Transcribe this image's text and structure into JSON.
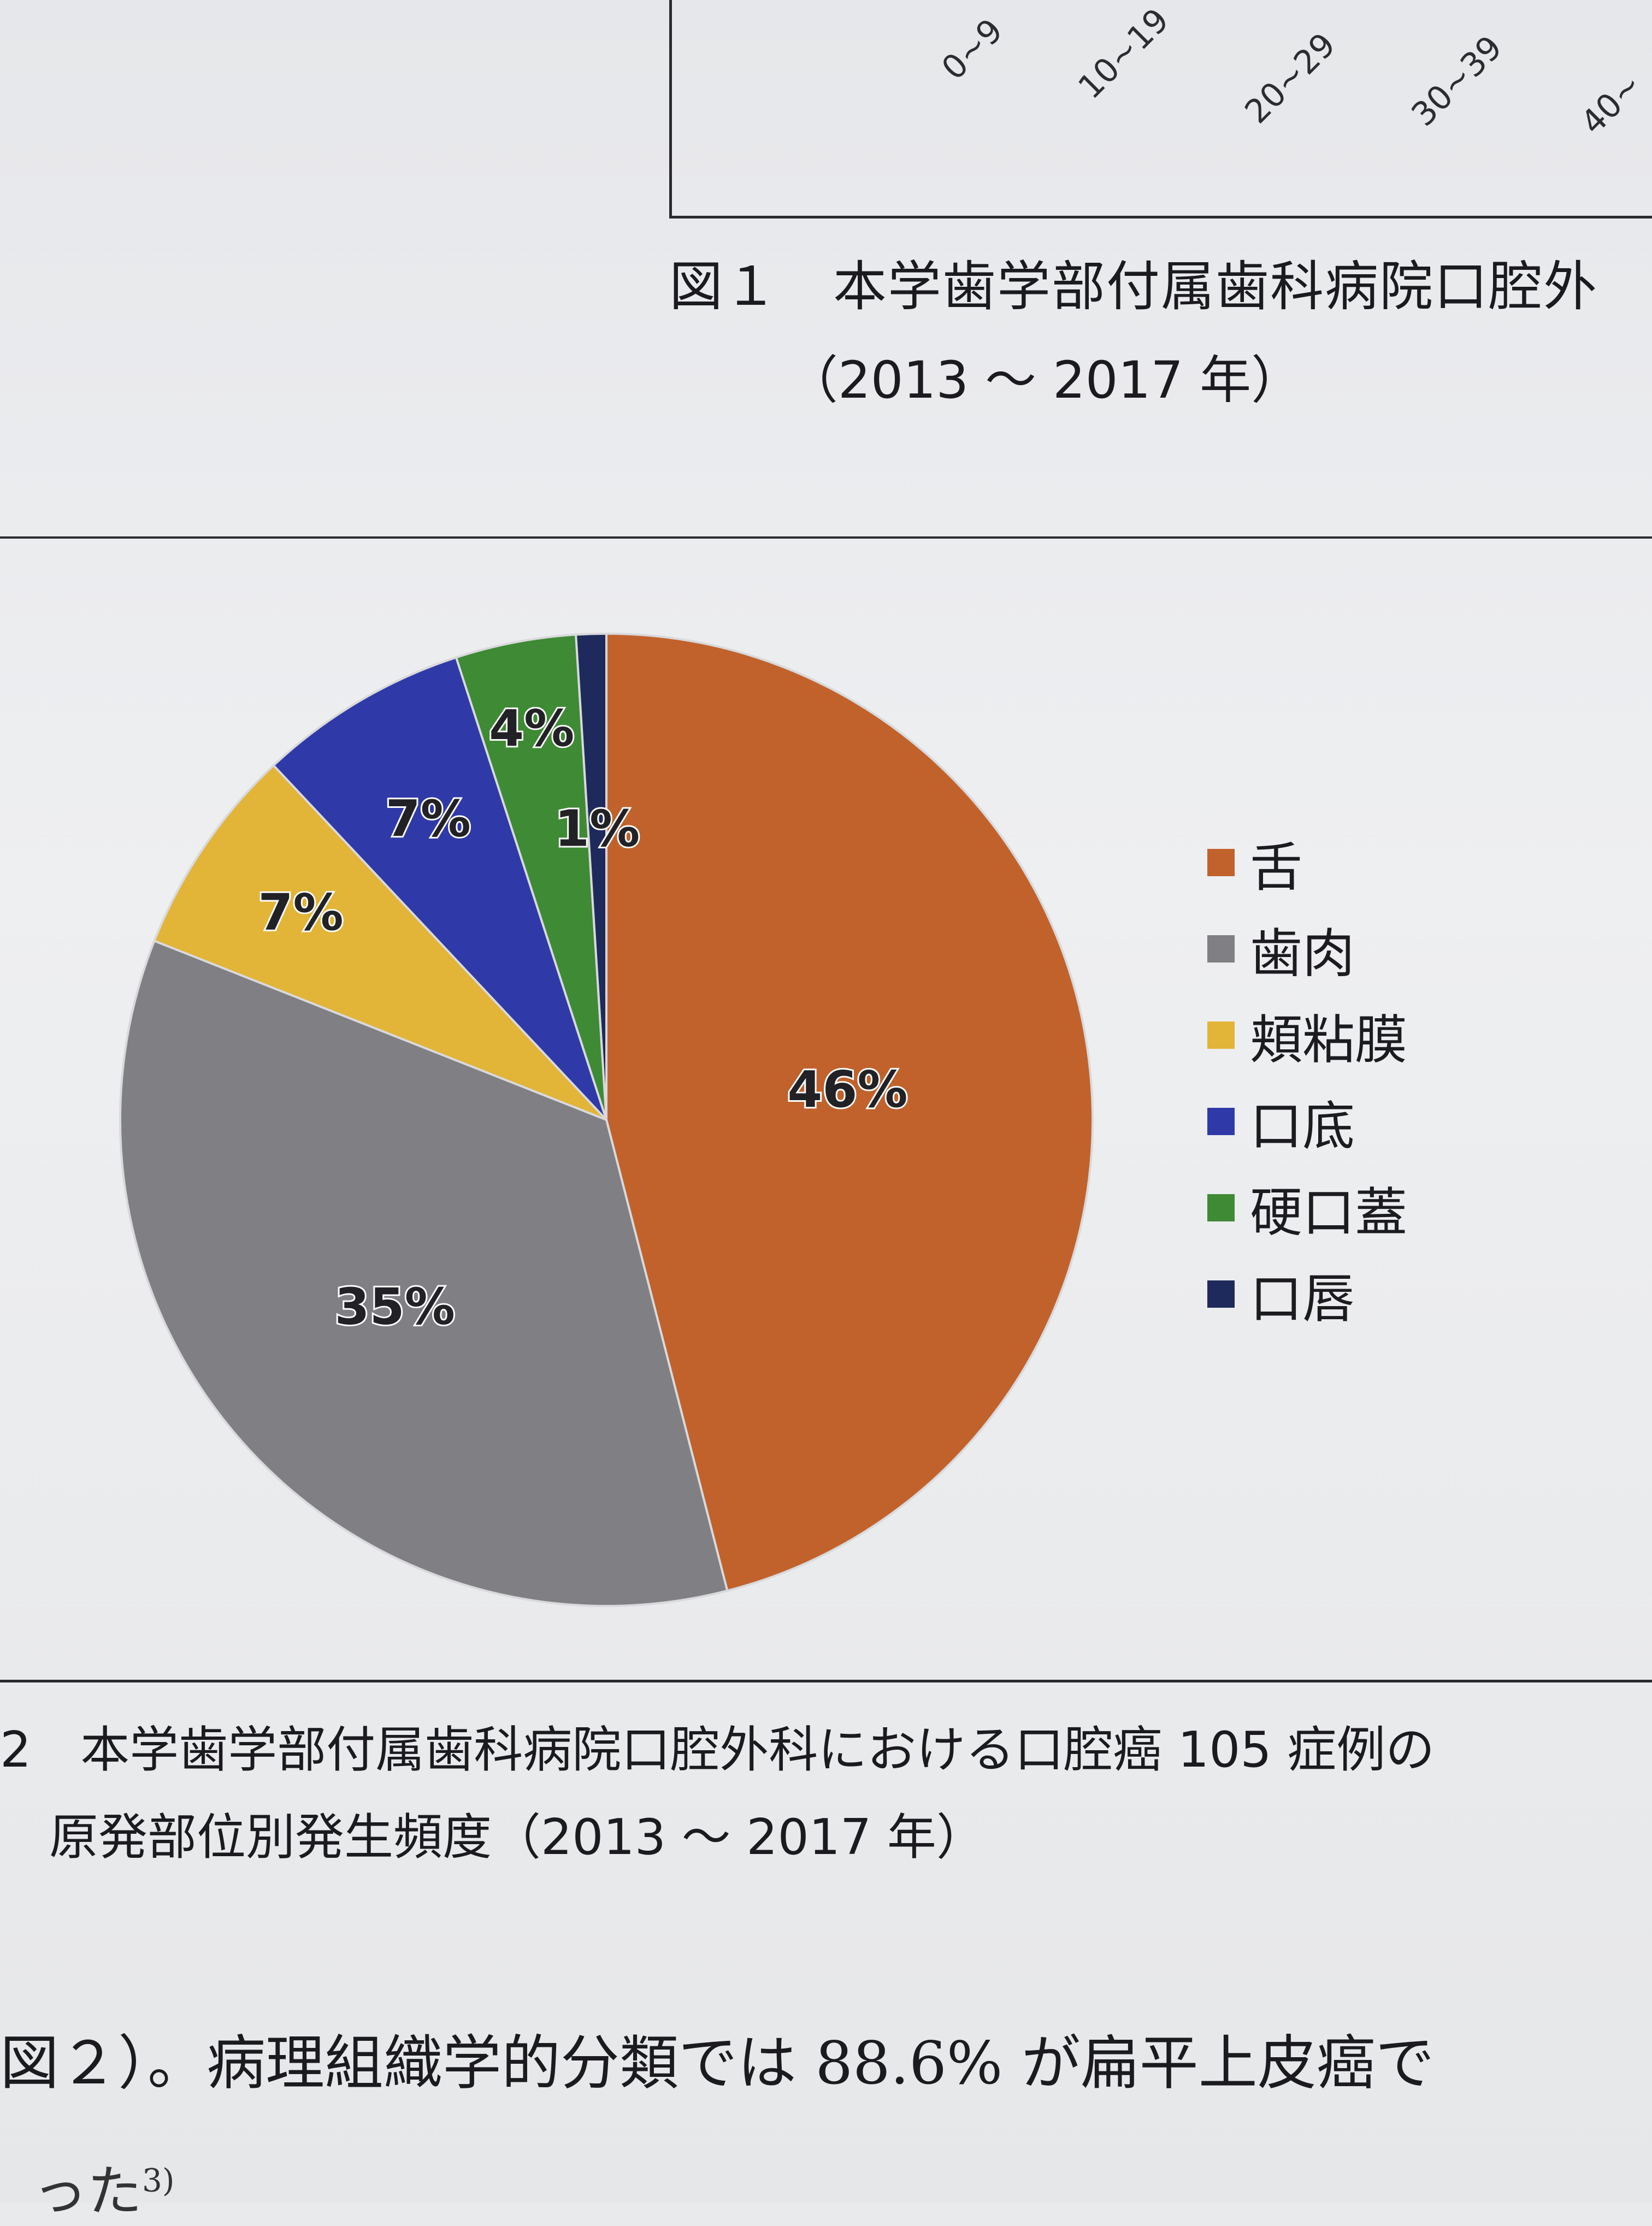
{
  "figure1": {
    "x_ticks": [
      "0~9",
      "10~19",
      "20~29",
      "30~39",
      "40~"
    ],
    "caption_line1": "図１　本学歯学部付属歯科病院口腔外",
    "caption_line2": "（2013 ～ 2017 年）"
  },
  "chart_data": {
    "type": "pie",
    "slices": [
      {
        "label": "舌",
        "value": 46,
        "display": "46%",
        "color": "#c1622c"
      },
      {
        "label": "歯肉",
        "value": 35,
        "display": "35%",
        "color": "#7f7f84"
      },
      {
        "label": "頬粘膜",
        "value": 7,
        "display": "7%",
        "color": "#e2b437"
      },
      {
        "label": "口底",
        "value": 7,
        "display": "7%",
        "color": "#2f3aa8"
      },
      {
        "label": "硬口蓋",
        "value": 4,
        "display": "4%",
        "color": "#3f8a35"
      },
      {
        "label": "口唇",
        "value": 1,
        "display": "1%",
        "color": "#1f2a5c"
      }
    ],
    "legend_position": "right"
  },
  "figure2": {
    "caption_line1": "2　本学歯学部付属歯科病院口腔外科における口腔癌 105 症例の",
    "caption_line2": "原発部位別発生頻度（2013 ～ 2017 年）"
  },
  "body_text": {
    "line1": "図２）。病理組織学的分類では 88.6% が扁平上皮癌で",
    "line2_text": "った",
    "line2_sup": "3)"
  }
}
